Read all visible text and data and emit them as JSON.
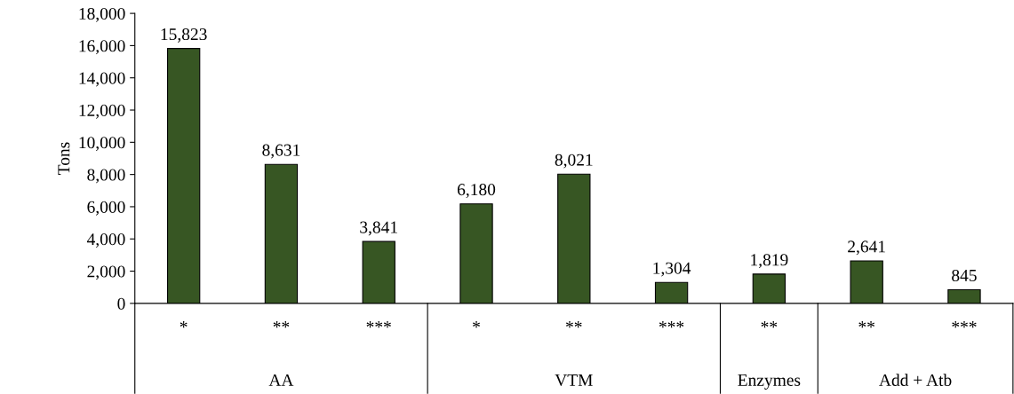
{
  "chart_data": {
    "type": "bar",
    "ylabel": "Tons",
    "categories": [
      "*",
      "**",
      "***",
      "*",
      "**",
      "***",
      "**",
      "**",
      "***"
    ],
    "values": [
      15823,
      8631,
      3841,
      6180,
      8021,
      1304,
      1819,
      2641,
      845
    ],
    "value_labels": [
      "15,823",
      "8,631",
      "3,841",
      "6,180",
      "8,021",
      "1,304",
      "1,819",
      "2,641",
      "845"
    ],
    "color": "#375623",
    "ylim": [
      0,
      18000
    ],
    "yticks": [
      0,
      {
        "value": 2000,
        "label": "2,000"
      },
      {
        "value": 4000,
        "label": "4,000"
      },
      {
        "value": 6000,
        "label": "6,000"
      },
      {
        "value": 8000,
        "label": "8,000"
      },
      {
        "value": 10000,
        "label": "10,000"
      },
      {
        "value": 12000,
        "label": "12,000"
      },
      {
        "value": 14000,
        "label": "14,000"
      },
      {
        "value": 16000,
        "label": "16,000"
      },
      {
        "value": 18000,
        "label": "18,000"
      }
    ],
    "annotations": [
      "AA",
      "VTM",
      "Enzymes",
      "Add + Atb"
    ]
  }
}
